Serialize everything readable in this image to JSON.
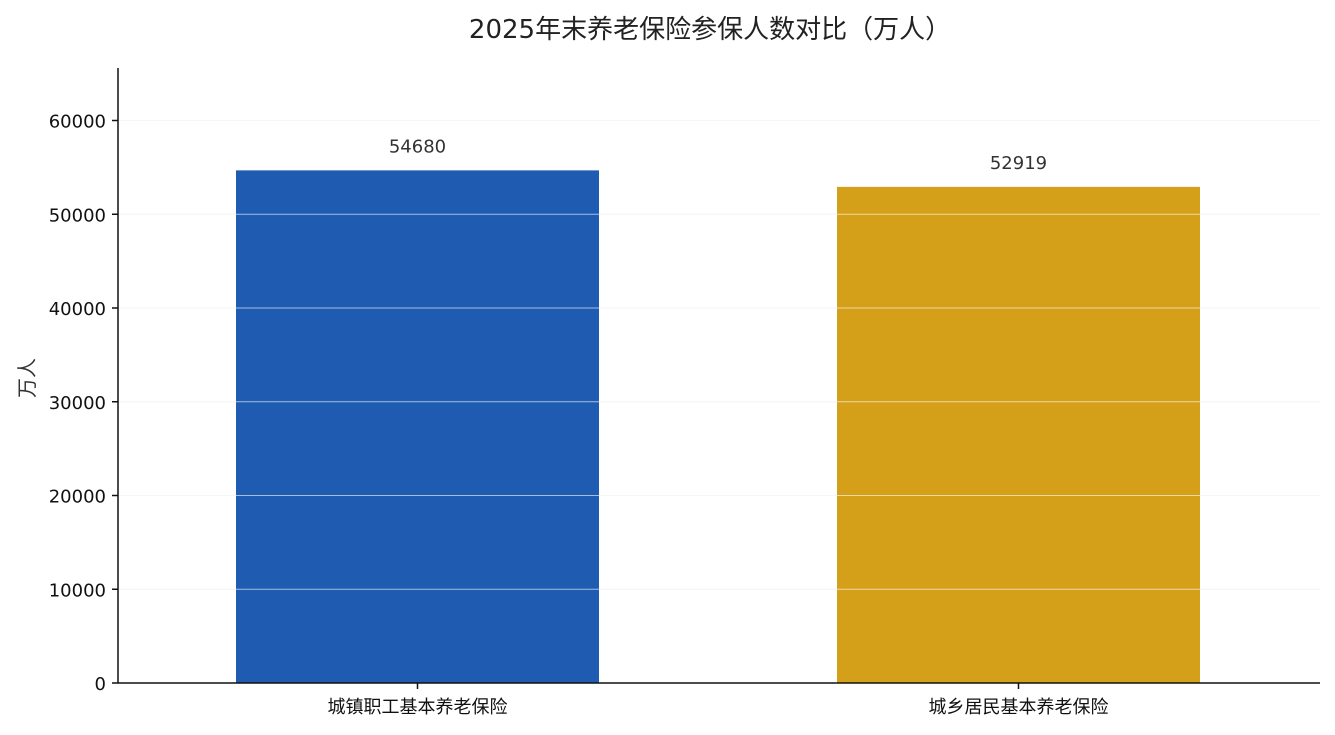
{
  "chart_data": {
    "type": "bar",
    "title": "2025年末养老保险参保人数对比（万人）",
    "xlabel": "",
    "ylabel": "万人",
    "categories": [
      "城镇职工基本养老保险",
      "城乡居民基本养老保险"
    ],
    "values": [
      54680,
      52919
    ],
    "data_labels": [
      "54680",
      "52919"
    ],
    "colors": [
      "#1f5bb1",
      "#d4a019"
    ],
    "ylim": [
      0,
      65600
    ],
    "yticks": [
      0,
      10000,
      20000,
      30000,
      40000,
      50000,
      60000
    ],
    "ytick_labels": [
      "0",
      "10000",
      "20000",
      "30000",
      "40000",
      "50000",
      "60000"
    ],
    "grid": true,
    "legend": "none"
  }
}
